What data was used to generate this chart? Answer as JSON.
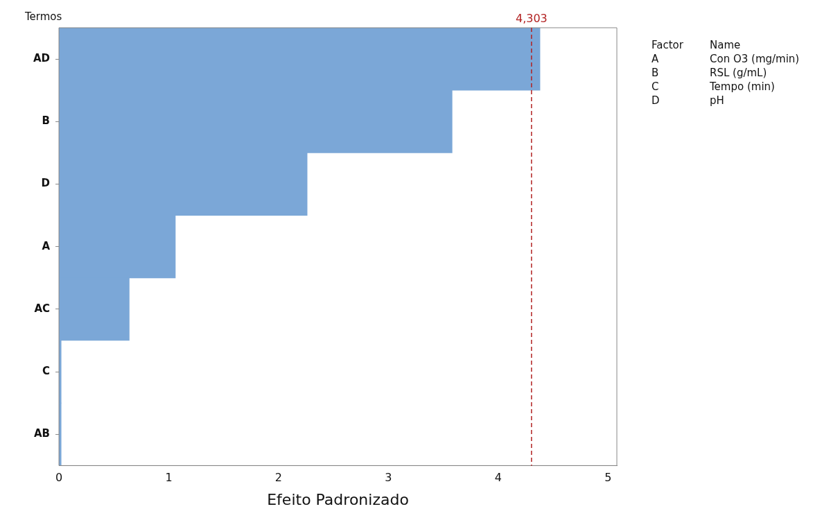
{
  "chart_data": {
    "type": "bar",
    "orientation": "horizontal",
    "xlabel": "Efeito Padronizado",
    "ylabel": "Termos",
    "categories": [
      "AD",
      "B",
      "D",
      "A",
      "AC",
      "C",
      "AB"
    ],
    "values": [
      4.38,
      3.58,
      2.26,
      1.06,
      0.64,
      0.02,
      0.02
    ],
    "color": "#7ba7d7",
    "xlim": [
      0,
      5.08
    ],
    "xticks": [
      0,
      1,
      2,
      3,
      4,
      5
    ],
    "ref_lines": [
      {
        "axis": "x",
        "value": 4.303,
        "label": "4,303",
        "color": "#b22222",
        "line_style": "dashed"
      }
    ],
    "annotations": [
      "Factor",
      "Name",
      "A",
      "Con O3 (mg/min)",
      "B",
      "RSL (g/mL)",
      "C",
      "Tempo (min)",
      "D",
      "pH"
    ],
    "grid": false,
    "legend": false
  }
}
